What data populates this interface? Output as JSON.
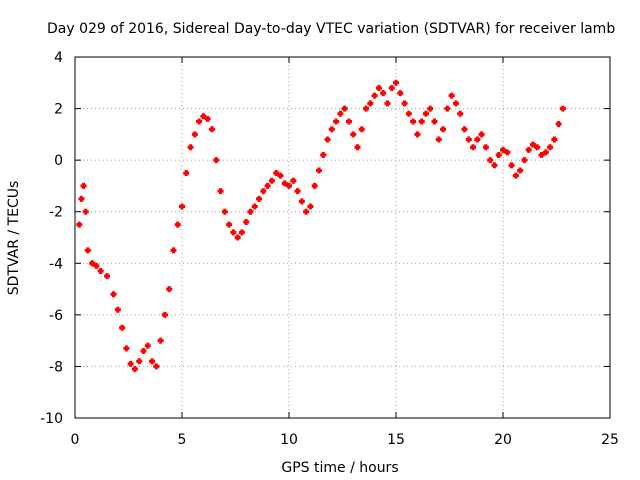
{
  "chart_data": {
    "type": "scatter",
    "title": "Day 029 of 2016, Sidereal Day-to-day VTEC variation (SDTVAR) for receiver lamb",
    "xlabel": "GPS time / hours",
    "ylabel": "SDTVAR / TECUs",
    "xlim": [
      0,
      25
    ],
    "ylim": [
      -10,
      4
    ],
    "grid": true,
    "marker": "+",
    "series_color": "#ff0000",
    "x_ticks": [
      0,
      5,
      10,
      15,
      20,
      25
    ],
    "y_ticks": [
      -10,
      -8,
      -6,
      -4,
      -2,
      0,
      2,
      4
    ],
    "series": [
      {
        "name": "SDTVAR",
        "x": [
          0.2,
          0.3,
          0.4,
          0.5,
          0.6,
          0.8,
          1.0,
          1.2,
          1.5,
          1.8,
          2.0,
          2.2,
          2.4,
          2.6,
          2.8,
          3.0,
          3.2,
          3.4,
          3.6,
          3.8,
          4.0,
          4.2,
          4.4,
          4.6,
          4.8,
          5.0,
          5.2,
          5.4,
          5.6,
          5.8,
          6.0,
          6.2,
          6.4,
          6.6,
          6.8,
          7.0,
          7.2,
          7.4,
          7.6,
          7.8,
          8.0,
          8.2,
          8.4,
          8.6,
          8.8,
          9.0,
          9.2,
          9.4,
          9.6,
          9.8,
          10.0,
          10.2,
          10.4,
          10.6,
          10.8,
          11.0,
          11.2,
          11.4,
          11.6,
          11.8,
          12.0,
          12.2,
          12.4,
          12.6,
          12.8,
          13.0,
          13.2,
          13.4,
          13.6,
          13.8,
          14.0,
          14.2,
          14.4,
          14.6,
          14.8,
          15.0,
          15.2,
          15.4,
          15.6,
          15.8,
          16.0,
          16.2,
          16.4,
          16.6,
          16.8,
          17.0,
          17.2,
          17.4,
          17.6,
          17.8,
          18.0,
          18.2,
          18.4,
          18.6,
          18.8,
          19.0,
          19.2,
          19.4,
          19.6,
          19.8,
          20.0,
          20.2,
          20.4,
          20.6,
          20.8,
          21.0,
          21.2,
          21.4,
          21.6,
          21.8,
          22.0,
          22.2,
          22.4,
          22.6,
          22.8
        ],
        "y": [
          -2.5,
          -1.5,
          -1.0,
          -2.0,
          -3.5,
          -4.0,
          -4.1,
          -4.3,
          -4.5,
          -5.2,
          -5.8,
          -6.5,
          -7.3,
          -7.9,
          -8.1,
          -7.8,
          -7.4,
          -7.2,
          -7.8,
          -8.0,
          -7.0,
          -6.0,
          -5.0,
          -3.5,
          -2.5,
          -1.8,
          -0.5,
          0.5,
          1.0,
          1.5,
          1.7,
          1.6,
          1.2,
          0.0,
          -1.2,
          -2.0,
          -2.5,
          -2.8,
          -3.0,
          -2.8,
          -2.4,
          -2.0,
          -1.8,
          -1.5,
          -1.2,
          -1.0,
          -0.8,
          -0.5,
          -0.6,
          -0.9,
          -1.0,
          -0.8,
          -1.2,
          -1.6,
          -2.0,
          -1.8,
          -1.0,
          -0.4,
          0.2,
          0.8,
          1.2,
          1.5,
          1.8,
          2.0,
          1.5,
          1.0,
          0.5,
          1.2,
          2.0,
          2.2,
          2.5,
          2.8,
          2.6,
          2.2,
          2.8,
          3.0,
          2.6,
          2.2,
          1.8,
          1.5,
          1.0,
          1.5,
          1.8,
          2.0,
          1.5,
          0.8,
          1.2,
          2.0,
          2.5,
          2.2,
          1.8,
          1.2,
          0.8,
          0.5,
          0.8,
          1.0,
          0.5,
          0.0,
          -0.2,
          0.2,
          0.4,
          0.3,
          -0.2,
          -0.6,
          -0.4,
          0.0,
          0.4,
          0.6,
          0.5,
          0.2,
          0.3,
          0.5,
          0.8,
          1.4,
          2.0
        ]
      }
    ]
  }
}
